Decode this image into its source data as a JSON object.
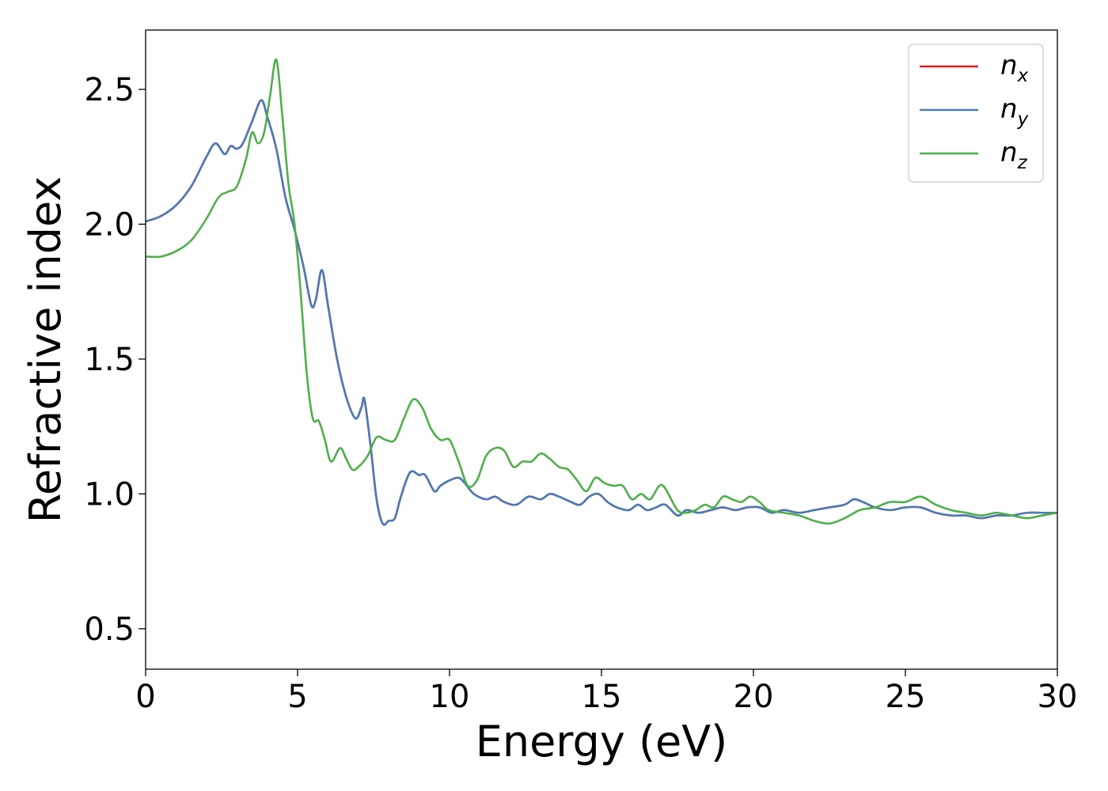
{
  "chart_data": {
    "type": "line",
    "xlabel": "Energy (eV)",
    "ylabel": "Refractive index",
    "xlim": [
      0,
      30
    ],
    "ylim": [
      0.35,
      2.72
    ],
    "xticks": [
      0,
      5,
      10,
      15,
      20,
      25,
      30
    ],
    "xtick_labels": [
      "0",
      "5",
      "10",
      "15",
      "20",
      "25",
      "30"
    ],
    "yticks": [
      0.5,
      1.0,
      1.5,
      2.0,
      2.5
    ],
    "ytick_labels": [
      "0.5",
      "1.0",
      "1.5",
      "2.0",
      "2.5"
    ],
    "grid": false,
    "legend": "top-right",
    "series": [
      {
        "name": "n_x",
        "label_main": "n",
        "label_sub": "x",
        "color": "#e41a1c",
        "x": [
          0,
          0.5,
          1.0,
          1.5,
          2.0,
          2.3,
          2.6,
          2.8,
          3.0,
          3.2,
          3.5,
          3.8,
          4.0,
          4.3,
          4.6,
          4.9,
          5.2,
          5.45,
          5.6,
          5.8,
          6.0,
          6.3,
          6.6,
          6.9,
          7.1,
          7.2,
          7.4,
          7.6,
          7.8,
          8.0,
          8.2,
          8.4,
          8.7,
          9.0,
          9.2,
          9.5,
          9.7,
          10.0,
          10.3,
          10.5,
          10.8,
          11.2,
          11.5,
          11.8,
          12.2,
          12.6,
          13.0,
          13.3,
          13.6,
          14.0,
          14.3,
          14.6,
          14.9,
          15.2,
          15.5,
          15.9,
          16.2,
          16.5,
          16.8,
          17.1,
          17.5,
          17.8,
          18.2,
          18.6,
          19.0,
          19.4,
          19.8,
          20.2,
          20.6,
          21.0,
          21.5,
          22.0,
          22.5,
          23.0,
          23.3,
          23.6,
          24.0,
          24.5,
          25.0,
          25.5,
          26.0,
          26.5,
          27.0,
          27.5,
          28.0,
          28.5,
          29.0,
          29.5,
          30.0
        ],
        "y": [
          2.01,
          2.03,
          2.07,
          2.14,
          2.25,
          2.3,
          2.26,
          2.29,
          2.28,
          2.3,
          2.38,
          2.46,
          2.4,
          2.28,
          2.1,
          1.98,
          1.84,
          1.7,
          1.72,
          1.83,
          1.7,
          1.5,
          1.36,
          1.28,
          1.32,
          1.35,
          1.18,
          0.98,
          0.89,
          0.9,
          0.91,
          0.99,
          1.08,
          1.07,
          1.07,
          1.01,
          1.03,
          1.05,
          1.06,
          1.04,
          1.0,
          0.98,
          0.99,
          0.97,
          0.96,
          0.99,
          0.98,
          1.0,
          0.99,
          0.97,
          0.96,
          0.99,
          1.0,
          0.97,
          0.95,
          0.94,
          0.96,
          0.94,
          0.95,
          0.96,
          0.92,
          0.94,
          0.93,
          0.94,
          0.95,
          0.94,
          0.95,
          0.95,
          0.93,
          0.94,
          0.93,
          0.94,
          0.95,
          0.96,
          0.98,
          0.97,
          0.95,
          0.94,
          0.95,
          0.95,
          0.93,
          0.92,
          0.92,
          0.91,
          0.92,
          0.92,
          0.93,
          0.93,
          0.93
        ]
      },
      {
        "name": "n_y",
        "label_main": "n",
        "label_sub": "y",
        "color": "#4a7bb7",
        "x": [
          0,
          0.5,
          1.0,
          1.5,
          2.0,
          2.3,
          2.6,
          2.8,
          3.0,
          3.2,
          3.5,
          3.8,
          4.0,
          4.3,
          4.6,
          4.9,
          5.2,
          5.45,
          5.6,
          5.8,
          6.0,
          6.3,
          6.6,
          6.9,
          7.1,
          7.2,
          7.4,
          7.6,
          7.8,
          8.0,
          8.2,
          8.4,
          8.7,
          9.0,
          9.2,
          9.5,
          9.7,
          10.0,
          10.3,
          10.5,
          10.8,
          11.2,
          11.5,
          11.8,
          12.2,
          12.6,
          13.0,
          13.3,
          13.6,
          14.0,
          14.3,
          14.6,
          14.9,
          15.2,
          15.5,
          15.9,
          16.2,
          16.5,
          16.8,
          17.1,
          17.5,
          17.8,
          18.2,
          18.6,
          19.0,
          19.4,
          19.8,
          20.2,
          20.6,
          21.0,
          21.5,
          22.0,
          22.5,
          23.0,
          23.3,
          23.6,
          24.0,
          24.5,
          25.0,
          25.5,
          26.0,
          26.5,
          27.0,
          27.5,
          28.0,
          28.5,
          29.0,
          29.5,
          30.0
        ],
        "y": [
          2.01,
          2.03,
          2.07,
          2.14,
          2.25,
          2.3,
          2.26,
          2.29,
          2.28,
          2.3,
          2.38,
          2.46,
          2.4,
          2.28,
          2.1,
          1.98,
          1.84,
          1.7,
          1.72,
          1.83,
          1.7,
          1.5,
          1.36,
          1.28,
          1.32,
          1.35,
          1.18,
          0.98,
          0.89,
          0.9,
          0.91,
          0.99,
          1.08,
          1.07,
          1.07,
          1.01,
          1.03,
          1.05,
          1.06,
          1.04,
          1.0,
          0.98,
          0.99,
          0.97,
          0.96,
          0.99,
          0.98,
          1.0,
          0.99,
          0.97,
          0.96,
          0.99,
          1.0,
          0.97,
          0.95,
          0.94,
          0.96,
          0.94,
          0.95,
          0.96,
          0.92,
          0.94,
          0.93,
          0.94,
          0.95,
          0.94,
          0.95,
          0.95,
          0.93,
          0.94,
          0.93,
          0.94,
          0.95,
          0.96,
          0.98,
          0.97,
          0.95,
          0.94,
          0.95,
          0.95,
          0.93,
          0.92,
          0.92,
          0.91,
          0.92,
          0.92,
          0.93,
          0.93,
          0.93
        ]
      },
      {
        "name": "n_z",
        "label_main": "n",
        "label_sub": "z",
        "color": "#4daf4a",
        "x": [
          0,
          0.5,
          1.0,
          1.5,
          2.0,
          2.4,
          2.7,
          3.0,
          3.3,
          3.5,
          3.7,
          3.9,
          4.1,
          4.3,
          4.5,
          4.7,
          4.9,
          5.1,
          5.3,
          5.5,
          5.7,
          5.9,
          6.1,
          6.4,
          6.6,
          6.8,
          7.0,
          7.3,
          7.6,
          7.9,
          8.2,
          8.5,
          8.8,
          9.1,
          9.4,
          9.7,
          10.0,
          10.3,
          10.6,
          10.9,
          11.2,
          11.5,
          11.8,
          12.1,
          12.4,
          12.7,
          13.0,
          13.3,
          13.6,
          13.9,
          14.2,
          14.5,
          14.8,
          15.1,
          15.4,
          15.7,
          16.0,
          16.3,
          16.6,
          16.9,
          17.1,
          17.5,
          17.8,
          18.1,
          18.4,
          18.7,
          19.0,
          19.3,
          19.6,
          19.9,
          20.2,
          20.5,
          21.0,
          21.5,
          22.0,
          22.5,
          23.0,
          23.5,
          24.0,
          24.5,
          25.0,
          25.5,
          26.0,
          26.5,
          27.0,
          27.5,
          28.0,
          28.5,
          29.0,
          29.5,
          30.0
        ],
        "y": [
          1.88,
          1.88,
          1.9,
          1.94,
          2.02,
          2.1,
          2.12,
          2.14,
          2.24,
          2.34,
          2.3,
          2.34,
          2.48,
          2.61,
          2.4,
          2.15,
          2.0,
          1.75,
          1.45,
          1.28,
          1.27,
          1.2,
          1.12,
          1.17,
          1.13,
          1.09,
          1.1,
          1.14,
          1.21,
          1.2,
          1.2,
          1.28,
          1.35,
          1.32,
          1.24,
          1.2,
          1.2,
          1.12,
          1.03,
          1.05,
          1.14,
          1.17,
          1.16,
          1.1,
          1.12,
          1.12,
          1.15,
          1.13,
          1.1,
          1.09,
          1.05,
          1.01,
          1.06,
          1.04,
          1.03,
          1.03,
          0.98,
          1.0,
          0.98,
          1.03,
          1.02,
          0.94,
          0.93,
          0.94,
          0.96,
          0.95,
          0.99,
          0.98,
          0.97,
          0.99,
          0.97,
          0.94,
          0.93,
          0.92,
          0.9,
          0.89,
          0.91,
          0.94,
          0.95,
          0.97,
          0.97,
          0.99,
          0.96,
          0.94,
          0.93,
          0.92,
          0.93,
          0.92,
          0.91,
          0.92,
          0.93
        ]
      }
    ]
  }
}
